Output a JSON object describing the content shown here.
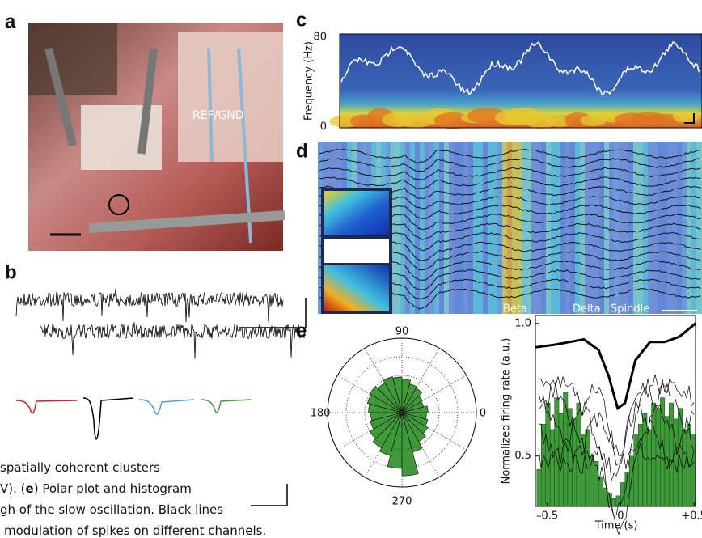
{
  "panels": {
    "a": "a",
    "b": "b",
    "c": "c",
    "d": "d",
    "e": "e"
  },
  "photo": {
    "label": "REF/GND"
  },
  "spectrogram": {
    "ylabel": "Frequency (Hz)",
    "ytop": "80",
    "ybottom": "0"
  },
  "heatmap": {
    "labels": [
      "Beta",
      "Delta",
      "Spindle"
    ]
  },
  "polar": {
    "labels": {
      "top": "90",
      "left": "180",
      "right": "0",
      "bottom": "270"
    },
    "rlim": [
      0,
      1
    ],
    "values": [
      0.35,
      0.3,
      0.32,
      0.38,
      0.4,
      0.45,
      0.48,
      0.5,
      0.46,
      0.5,
      0.48,
      0.45,
      0.42,
      0.44,
      0.5,
      0.55,
      0.6,
      0.75,
      0.85,
      0.55,
      0.45,
      0.4,
      0.36,
      0.33
    ],
    "color": "#3f9a3a"
  },
  "firing_rate": {
    "ylabel": "Normalized firing rate (a.u.)",
    "xlabel": "Time (s)",
    "xlim": [
      -0.58,
      0.51
    ],
    "ylim": [
      0.31,
      1.03
    ],
    "xticks": [
      {
        "value": -0.5,
        "label": "–0.5"
      },
      0,
      {
        "value": 0.5,
        "label": "+0.5"
      }
    ],
    "yticks": [
      0.5,
      {
        "value": 1,
        "label": "1.0"
      }
    ],
    "bins": [
      -0.57,
      -0.54,
      -0.51,
      -0.48,
      -0.45,
      -0.42,
      -0.39,
      -0.36,
      -0.33,
      -0.3,
      -0.27,
      -0.24,
      -0.21,
      -0.18,
      -0.15,
      -0.12,
      -0.09,
      -0.06,
      -0.03,
      0,
      0.03,
      0.06,
      0.09,
      0.12,
      0.15,
      0.18,
      0.21,
      0.24,
      0.27,
      0.3,
      0.33,
      0.36,
      0.39,
      0.42,
      0.45,
      0.48,
      0.51
    ],
    "values": [
      0.45,
      0.62,
      0.7,
      0.6,
      0.72,
      0.66,
      0.74,
      0.68,
      0.64,
      0.7,
      0.58,
      0.6,
      0.5,
      0.48,
      0.42,
      0.38,
      0.36,
      0.34,
      0.35,
      0.4,
      0.44,
      0.5,
      0.58,
      0.62,
      0.66,
      0.6,
      0.7,
      0.68,
      0.72,
      0.65,
      0.7,
      0.64,
      0.68,
      0.6,
      0.62,
      0.58
    ],
    "color": "#3f9a3a",
    "curve": {
      "x": [
        -0.58,
        -0.45,
        -0.35,
        -0.25,
        -0.15,
        -0.08,
        -0.02,
        0.03,
        0.1,
        0.2,
        0.3,
        0.4,
        0.51
      ],
      "values": [
        0.91,
        0.92,
        0.93,
        0.94,
        0.9,
        0.8,
        0.68,
        0.7,
        0.86,
        0.93,
        0.93,
        0.95,
        1.0
      ]
    }
  },
  "caption": {
    "line0": "spatially coherent clusters",
    "line1": [
      "V). (",
      "e",
      ") Polar plot and histogram"
    ],
    "line2": "gh of the slow oscillation. Black lines",
    "line3": "modulation of spikes on different channels."
  }
}
